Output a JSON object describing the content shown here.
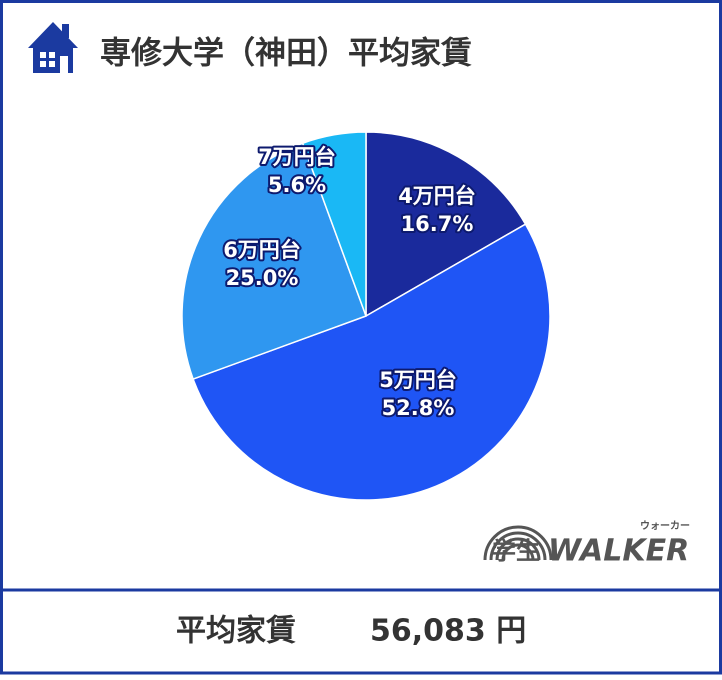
{
  "chart_data": {
    "type": "pie",
    "title": "専修大学（神田）平均家賃",
    "categories": [
      "4万円台",
      "5万円台",
      "6万円台",
      "7万円台"
    ],
    "values": [
      16.7,
      52.8,
      25.0,
      5.6
    ],
    "value_labels": [
      "16.7%",
      "52.8%",
      "25.0%",
      "5.6%"
    ],
    "colors": [
      "#1a2a9c",
      "#1f55f5",
      "#2f97f0",
      "#1ab8f5"
    ]
  },
  "footer": {
    "label": "平均家賃",
    "value": "56,083 円"
  },
  "logo": {
    "text": "学生",
    "brand": "WALKER",
    "reading": "ウォーカー"
  }
}
